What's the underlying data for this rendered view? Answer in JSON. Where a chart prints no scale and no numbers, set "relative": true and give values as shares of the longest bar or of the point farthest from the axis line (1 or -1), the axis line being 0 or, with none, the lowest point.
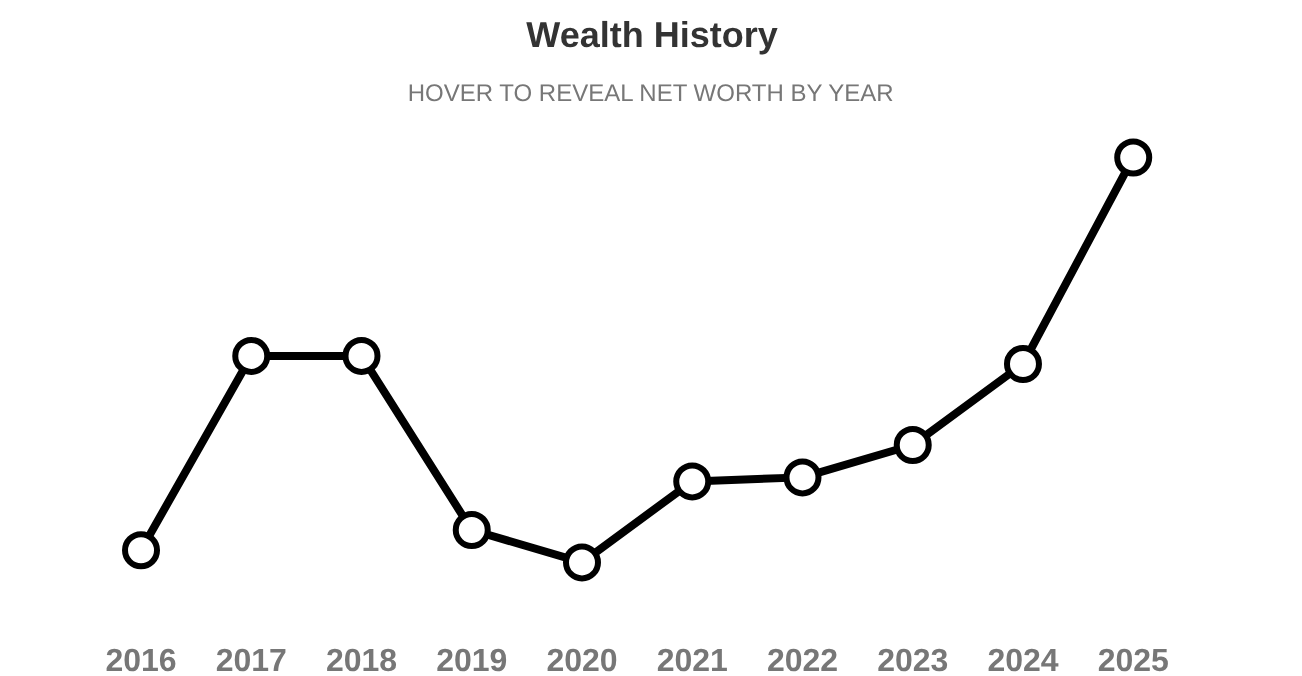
{
  "chart_data": {
    "type": "line",
    "title": "Wealth History",
    "subtitle": "HOVER TO REVEAL NET WORTH BY YEAR",
    "categories": [
      "2016",
      "2017",
      "2018",
      "2019",
      "2020",
      "2021",
      "2022",
      "2023",
      "2024",
      "2025"
    ],
    "series": [
      {
        "color": "#000000",
        "values": [
          0.03,
          0.51,
          0.51,
          0.08,
          0,
          0.2,
          0.21,
          0.29,
          0.49,
          1
        ]
      }
    ],
    "relative": true,
    "marker": "circle",
    "line_style": "solid",
    "grid": false
  }
}
